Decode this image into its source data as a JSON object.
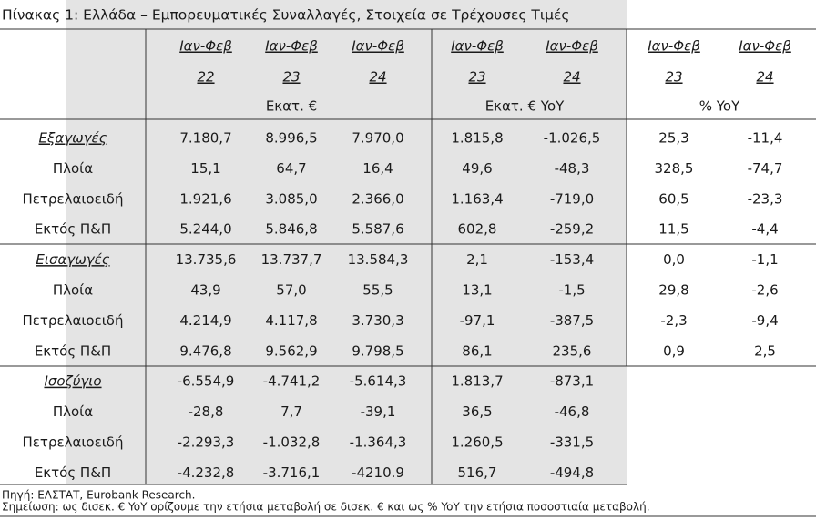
{
  "header": {
    "title": "Πίνακας 1: Ελλάδα – Εμπορευματικές Συναλλαγές, Στοιχεία σε Τρέχουσες Τιμές"
  },
  "table": {
    "columns": [
      {
        "period": "Ιαν-Φεβ",
        "year": "22"
      },
      {
        "period": "Ιαν-Φεβ",
        "year": "23"
      },
      {
        "period": "Ιαν-Φεβ",
        "year": "24"
      },
      {
        "period": "Ιαν-Φεβ",
        "year": "23"
      },
      {
        "period": "Ιαν-Φεβ",
        "year": "24"
      },
      {
        "period": "Ιαν-Φεβ",
        "year": "23"
      },
      {
        "period": "Ιαν-Φεβ",
        "year": "24"
      }
    ],
    "units": [
      "Εκατ. €",
      "Εκατ. € YoY",
      "% YoY"
    ],
    "groups": [
      {
        "rows": [
          {
            "label": "Εξαγωγές",
            "values": [
              "7.180,7",
              "8.996,5",
              "7.970,0",
              "1.815,8",
              "-1.026,5",
              "25,3",
              "-11,4"
            ]
          },
          {
            "label": "Πλοία",
            "values": [
              "15,1",
              "64,7",
              "16,4",
              "49,6",
              "-48,3",
              "328,5",
              "-74,7"
            ]
          },
          {
            "label": "Πετρελαιοειδή",
            "values": [
              "1.921,6",
              "3.085,0",
              "2.366,0",
              "1.163,4",
              "-719,0",
              "60,5",
              "-23,3"
            ]
          },
          {
            "label": "Εκτός Π&Π",
            "values": [
              "5.244,0",
              "5.846,8",
              "5.587,6",
              "602,8",
              "-259,2",
              "11,5",
              "-4,4"
            ]
          }
        ]
      },
      {
        "rows": [
          {
            "label": "Εισαγωγές",
            "values": [
              "13.735,6",
              "13.737,7",
              "13.584,3",
              "2,1",
              "-153,4",
              "0,0",
              "-1,1"
            ]
          },
          {
            "label": "Πλοία",
            "values": [
              "43,9",
              "57,0",
              "55,5",
              "13,1",
              "-1,5",
              "29,8",
              "-2,6"
            ]
          },
          {
            "label": "Πετρελαιοειδή",
            "values": [
              "4.214,9",
              "4.117,8",
              "3.730,3",
              "-97,1",
              "-387,5",
              "-2,3",
              "-9,4"
            ]
          },
          {
            "label": "Εκτός Π&Π",
            "values": [
              "9.476,8",
              "9.562,9",
              "9.798,5",
              "86,1",
              "235,6",
              "0,9",
              "2,5"
            ]
          }
        ]
      },
      {
        "rows": [
          {
            "label": "Ισοζύγιο",
            "values": [
              "-6.554,9",
              "-4.741,2",
              "-5.614,3",
              "1.813,7",
              "-873,1"
            ]
          },
          {
            "label": "Πλοία",
            "values": [
              "-28,8",
              "7,7",
              "-39,1",
              "36,5",
              "-46,8"
            ]
          },
          {
            "label": "Πετρελαιοειδή",
            "values": [
              "-2.293,3",
              "-1.032,8",
              "-1.364,3",
              "1.260,5",
              "-331,5"
            ]
          },
          {
            "label": "Εκτός Π&Π",
            "values": [
              "-4.232,8",
              "-3.716,1",
              "-4210.9",
              "516,7",
              "-494,8"
            ]
          }
        ]
      }
    ]
  },
  "footer": {
    "source": "Πηγή: ΕΛΣΤΑΤ, Eurobank Research.",
    "note": "Σημείωση: ως δισεκ. € YoY ορίζουμε την ετήσια μεταβολή σε δισεκ. € και ως % YoY την ετήσια ποσοστιαία μεταβολή."
  }
}
